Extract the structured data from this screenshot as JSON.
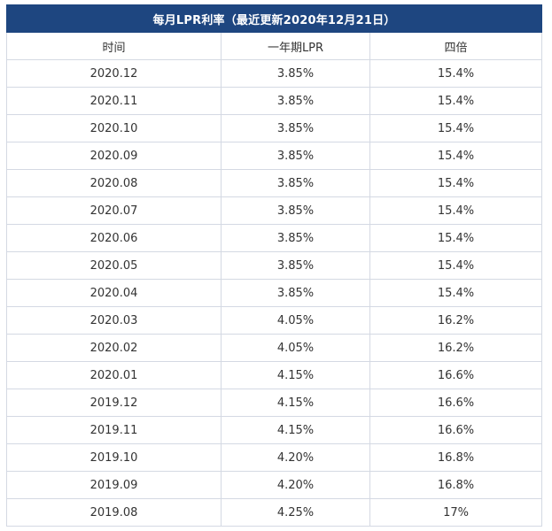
{
  "table": {
    "title": "每月LPR利率（最近更新2020年12月21日）",
    "columns": [
      "时间",
      "一年期LPR",
      "四倍"
    ],
    "rows": [
      [
        "2020.12",
        "3.85%",
        "15.4%"
      ],
      [
        "2020.11",
        "3.85%",
        "15.4%"
      ],
      [
        "2020.10",
        "3.85%",
        "15.4%"
      ],
      [
        "2020.09",
        "3.85%",
        "15.4%"
      ],
      [
        "2020.08",
        "3.85%",
        "15.4%"
      ],
      [
        "2020.07",
        "3.85%",
        "15.4%"
      ],
      [
        "2020.06",
        "3.85%",
        "15.4%"
      ],
      [
        "2020.05",
        "3.85%",
        "15.4%"
      ],
      [
        "2020.04",
        "3.85%",
        "15.4%"
      ],
      [
        "2020.03",
        "4.05%",
        "16.2%"
      ],
      [
        "2020.02",
        "4.05%",
        "16.2%"
      ],
      [
        "2020.01",
        "4.15%",
        "16.6%"
      ],
      [
        "2019.12",
        "4.15%",
        "16.6%"
      ],
      [
        "2019.11",
        "4.15%",
        "16.6%"
      ],
      [
        "2019.10",
        "4.20%",
        "16.8%"
      ],
      [
        "2019.09",
        "4.20%",
        "16.8%"
      ],
      [
        "2019.08",
        "4.25%",
        "17%"
      ]
    ]
  },
  "colors": {
    "header_bg": "#1e4680",
    "header_text": "#ffffff",
    "border": "#d4d9e3",
    "cell_text": "#333333"
  }
}
